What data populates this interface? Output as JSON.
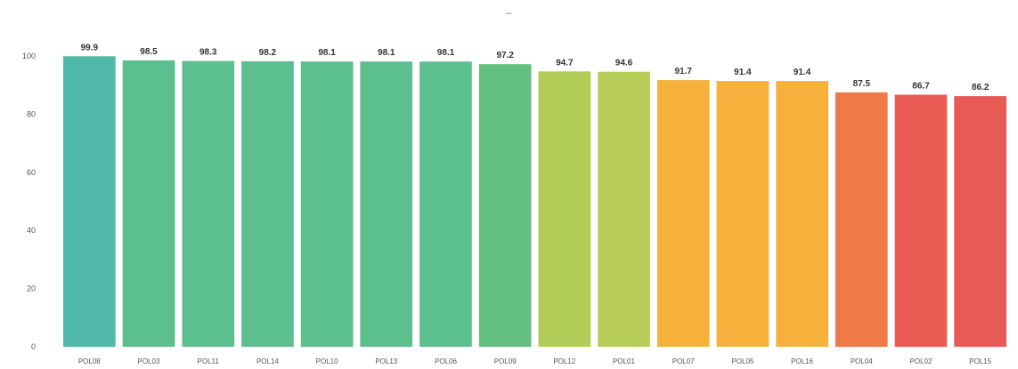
{
  "header": {
    "mark": "–"
  },
  "chart_data": {
    "type": "bar",
    "title": "",
    "xlabel": "",
    "ylabel": "",
    "ylim": [
      0,
      100
    ],
    "yticks": [
      "0",
      "20",
      "40",
      "60",
      "80",
      "100"
    ],
    "grid": false,
    "legend": "none",
    "categories": [
      "POL08",
      "POL03",
      "POL11",
      "POL14",
      "POL10",
      "POL13",
      "POL06",
      "POL09",
      "POL12",
      "POL01",
      "POL07",
      "POL05",
      "POL16",
      "POL04",
      "POL02",
      "POL15"
    ],
    "values": [
      99.9,
      98.5,
      98.3,
      98.2,
      98.1,
      98.1,
      98.1,
      97.2,
      94.7,
      94.6,
      91.7,
      91.4,
      91.4,
      87.5,
      86.7,
      86.2
    ],
    "value_labels": [
      "99.9",
      "98.5",
      "98.3",
      "98.2",
      "98.1",
      "98.1",
      "98.1",
      "97.2",
      "94.7",
      "94.6",
      "91.7",
      "91.4",
      "91.4",
      "87.5",
      "86.7",
      "86.2"
    ],
    "colors": [
      "#4fb8a8",
      "#5cbf8e",
      "#5cbf8e",
      "#5cbf8e",
      "#5cbf8e",
      "#5cbf8e",
      "#5cbf8e",
      "#64c080",
      "#b2cc58",
      "#b8cd58",
      "#f5b13c",
      "#f5b13c",
      "#f5b13c",
      "#ee7a48",
      "#ea5c53",
      "#e85a55"
    ]
  }
}
